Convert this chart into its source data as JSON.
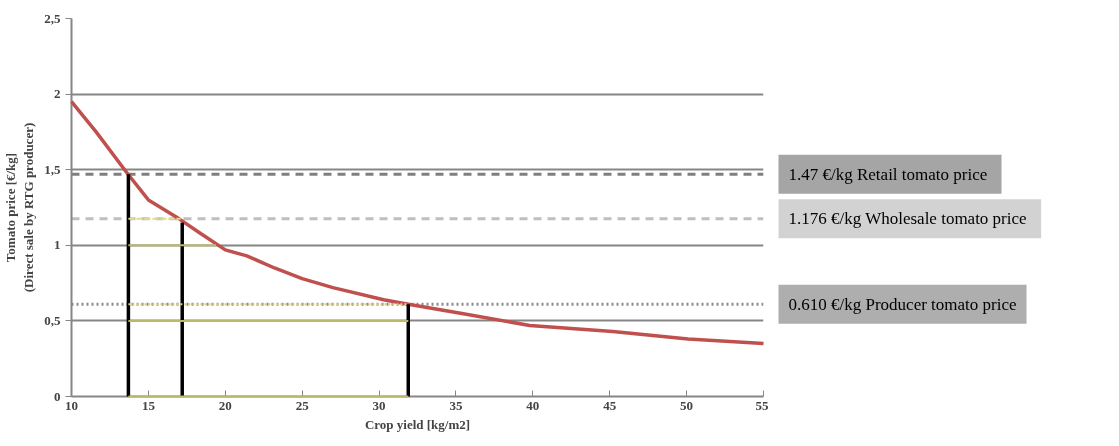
{
  "chart_data": {
    "type": "line",
    "xlabel": "Crop yield [kg/m2]",
    "ylabel": "Tomato price [€/kg]\n(Direct sale by RTG producer)",
    "xlim": [
      10,
      55
    ],
    "xticks": [
      10,
      15,
      20,
      25,
      30,
      35,
      40,
      45,
      50,
      55
    ],
    "ylim": [
      0,
      2.5
    ],
    "yticks": [
      {
        "value": 0,
        "label": "0"
      },
      {
        "value": 0.5,
        "label": "0,5"
      },
      {
        "value": 1,
        "label": "1"
      },
      {
        "value": 1.5,
        "label": "1,5"
      },
      {
        "value": 2,
        "label": "2"
      },
      {
        "value": 2.5,
        "label": "2,5"
      }
    ],
    "grid": "y",
    "ref_lines": [
      {
        "axis": "y",
        "value": 1.47,
        "label": "1.47 €/kg  Retail tomato price",
        "color": "#7f7f7f",
        "line_style": "dashed"
      },
      {
        "axis": "y",
        "value": 1.176,
        "label": "1.176 €/kg  Wholesale tomato price",
        "color": "#bfbfbf",
        "line_style": "dashed"
      },
      {
        "axis": "y",
        "value": 0.61,
        "label": "0.610 €/kg Producer tomato price",
        "color": "#8c8c8c",
        "line_style": "dotted"
      }
    ],
    "series": [
      {
        "color": "#c0504d",
        "x": [
          10,
          11.6,
          13.6,
          15,
          17,
          18.3,
          20,
          21.4,
          23.2,
          25,
          27,
          30.3,
          31.9,
          35.3,
          39.8,
          45.2,
          50.1,
          55
        ],
        "values": [
          1.95,
          1.75,
          1.48,
          1.3,
          1.175,
          1.085,
          0.97,
          0.93,
          0.85,
          0.78,
          0.72,
          0.64,
          0.61,
          0.55,
          0.47,
          0.43,
          0.38,
          0.35
        ],
        "line_style": "solid"
      },
      {
        "color": "#000000",
        "x": [
          13.7,
          13.7
        ],
        "values": [
          0,
          1.47
        ],
        "line_style": "solid"
      },
      {
        "color": "#000000",
        "x": [
          17.2,
          17.2
        ],
        "values": [
          0,
          1.15
        ],
        "line_style": "solid"
      },
      {
        "color": "#000000",
        "x": [
          31.9,
          31.9
        ],
        "values": [
          0,
          0.61
        ],
        "line_style": "solid"
      },
      {
        "color": "#bcb86a",
        "x": [
          13.7,
          31.9
        ],
        "values": [
          0,
          0
        ],
        "line_style": "solid"
      },
      {
        "color": "#bcb86a",
        "x": [
          13.7,
          31.9
        ],
        "values": [
          0.5,
          0.5
        ],
        "line_style": "solid"
      },
      {
        "color": "#bcb86a",
        "x": [
          13.7,
          19.4
        ],
        "values": [
          1,
          1
        ],
        "line_style": "solid"
      },
      {
        "color": "#d8d47a",
        "x": [
          13.7,
          31.9
        ],
        "values": [
          0.61,
          0.61
        ],
        "line_style": "dotted"
      },
      {
        "color": "#e0dc8c",
        "x": [
          13.7,
          17.1
        ],
        "values": [
          1.176,
          1.176
        ],
        "line_style": "dashed"
      }
    ]
  }
}
